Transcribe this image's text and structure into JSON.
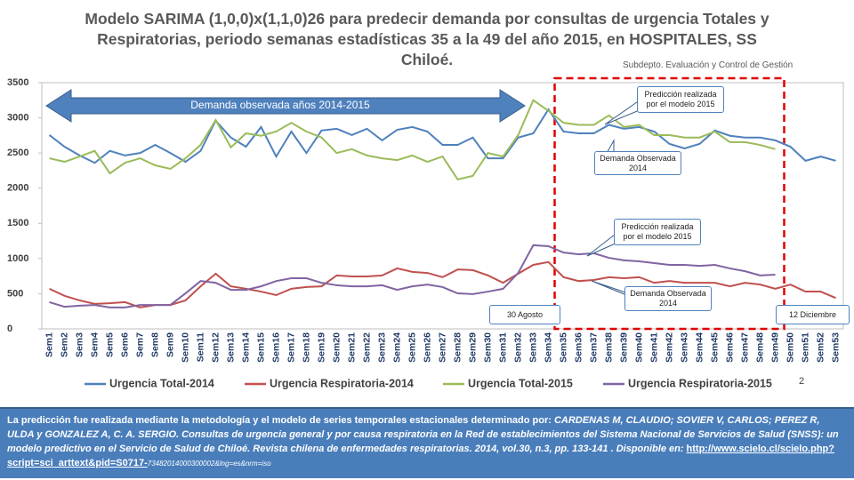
{
  "chart_data": {
    "type": "line",
    "title": "Modelo SARIMA (1,0,0)x(1,1,0)26  para predecir demanda por consultas de urgencia Totales y Respiratorias, periodo semanas estadísticas 35 a la 49 del año 2015, en HOSPITALES, SS Chiloé.",
    "subtitle": "Subdepto. Evaluación y Control de Gestión",
    "categories": [
      "Sem1",
      "Sem2",
      "Sem3",
      "Sem4",
      "Sem5",
      "Sem6",
      "Sem7",
      "Sem8",
      "Sem9",
      "Sem10",
      "Sem11",
      "Sem12",
      "Sem13",
      "Sem14",
      "Sem15",
      "Sem16",
      "Sem17",
      "Sem18",
      "Sem19",
      "Sem20",
      "Sem21",
      "Sem22",
      "Sem23",
      "Sem24",
      "Sem25",
      "Sem26",
      "Sem27",
      "Sem28",
      "Sem29",
      "Sem30",
      "Sem31",
      "Sem32",
      "Sem33",
      "Sem34",
      "Sem35",
      "Sem36",
      "Sem37",
      "Sem38",
      "Sem39",
      "Sem40",
      "Sem41",
      "Sem42",
      "Sem43",
      "Sem44",
      "Sem45",
      "Sem46",
      "Sem47",
      "Sem48",
      "Sem49",
      "Sem50",
      "Sem51",
      "Sem52",
      "Sem53"
    ],
    "series": [
      {
        "name": "Urgencia Total-2014",
        "color": "#4f81bd",
        "values": [
          2755,
          2590,
          2465,
          2360,
          2530,
          2465,
          2500,
          2615,
          2500,
          2375,
          2530,
          2960,
          2720,
          2590,
          2870,
          2450,
          2805,
          2500,
          2820,
          2845,
          2755,
          2845,
          2680,
          2830,
          2870,
          2805,
          2615,
          2615,
          2720,
          2425,
          2425,
          2720,
          2780,
          3120,
          2805,
          2780,
          2780,
          2900,
          2845,
          2870,
          2805,
          2630,
          2565,
          2630,
          2820,
          2745,
          2720,
          2720,
          2680,
          2590,
          2390,
          2450,
          2390
        ]
      },
      {
        "name": "Urgencia Respiratoria-2014",
        "color": "#c0504d",
        "values": [
          570,
          470,
          405,
          355,
          365,
          380,
          305,
          340,
          340,
          405,
          605,
          785,
          605,
          570,
          530,
          480,
          570,
          595,
          605,
          760,
          745,
          745,
          760,
          860,
          810,
          795,
          735,
          845,
          835,
          760,
          655,
          785,
          910,
          950,
          735,
          680,
          695,
          735,
          720,
          735,
          655,
          680,
          655,
          655,
          655,
          605,
          655,
          630,
          570,
          630,
          530,
          530,
          440
        ]
      },
      {
        "name": "Urgencia Total-2015",
        "color": "#9bbb59",
        "values": [
          2425,
          2375,
          2450,
          2530,
          2210,
          2360,
          2425,
          2325,
          2275,
          2425,
          2615,
          2970,
          2580,
          2780,
          2745,
          2805,
          2930,
          2805,
          2720,
          2500,
          2555,
          2465,
          2425,
          2400,
          2465,
          2375,
          2450,
          2125,
          2175,
          2500,
          2450,
          2755,
          3250,
          3100,
          2930,
          2900,
          2900,
          3035,
          2870,
          2900,
          2755,
          2755,
          2720,
          2720,
          2805,
          2655,
          2655,
          2615,
          2555,
          null,
          null,
          null,
          null
        ]
      },
      {
        "name": "Urgencia Respiratoria-2015",
        "color": "#8064a2",
        "values": [
          380,
          315,
          330,
          340,
          305,
          305,
          340,
          340,
          340,
          505,
          680,
          655,
          555,
          555,
          605,
          680,
          720,
          720,
          655,
          620,
          605,
          605,
          620,
          555,
          605,
          630,
          595,
          505,
          495,
          530,
          570,
          795,
          1190,
          1175,
          1085,
          1060,
          1075,
          1010,
          975,
          960,
          935,
          910,
          910,
          895,
          910,
          860,
          820,
          760,
          770,
          null,
          null,
          null,
          null
        ]
      }
    ],
    "ylim": [
      0,
      3500
    ],
    "yticks": [
      0,
      500,
      1000,
      1500,
      2000,
      2500,
      3000,
      3500
    ],
    "grid": false,
    "annotations": [
      "Demanda observada años 2014-2015",
      "Predicción realizada por el modelo 2015",
      "Demanda Observada 2014",
      "Predicción realizada por el modelo 2015",
      "Demanda Observada 2014",
      "30 Agosto",
      "12 Diciembre"
    ],
    "page_number": "2"
  },
  "footer": {
    "intro": "La predicción fue realizada mediante la metodología y el modelo de series temporales estacionales determinado por: ",
    "citation": "CARDENAS M, CLAUDIO; SOVIER V, CARLOS; PEREZ R, ULDA  y  GONZALEZ A, C. A. SERGIO. Consultas de urgencia general y por causa respiratoria en la Red de establecimientos del Sistema Nacional de Servicios de Salud (SNSS): un modelo predictivo en el Servicio de Salud de Chiloé. Revista chilena de enfermedades respiratorias. 2014, vol.30, n.3, pp. 133-141 . Disponible en: ",
    "link": "http://www.scielo.cl/scielo.php?script=sci_arttext&pid=S0717-",
    "link_tail": "73482014000300002&lng=es&nrm=iso"
  }
}
